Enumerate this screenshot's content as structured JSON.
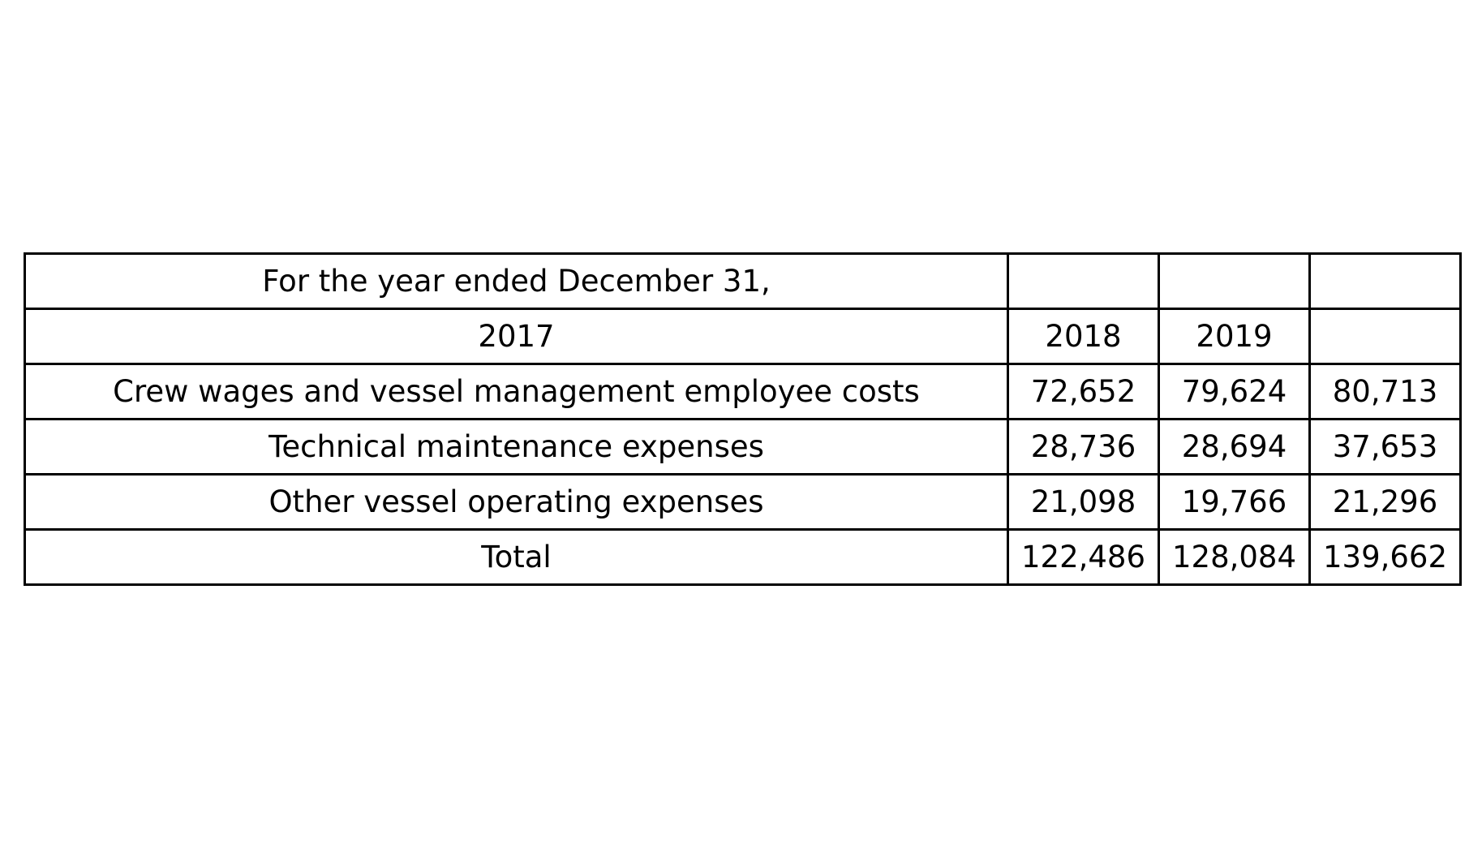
{
  "chart_data": {
    "type": "table",
    "rows": [
      [
        "For the year ended December 31,",
        "",
        "",
        ""
      ],
      [
        "2017",
        "2018",
        "2019",
        ""
      ],
      [
        "Crew wages and vessel management employee costs",
        "72,652",
        "79,624",
        "80,713"
      ],
      [
        "Technical maintenance expenses",
        "28,736",
        "28,694",
        "37,653"
      ],
      [
        "Other vessel operating expenses",
        "21,098",
        "19,766",
        "21,296"
      ],
      [
        "Total",
        "122,486",
        "128,084",
        "139,662"
      ]
    ]
  }
}
